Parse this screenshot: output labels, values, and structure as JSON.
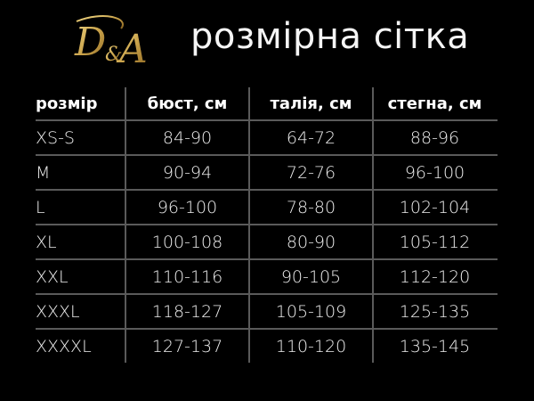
{
  "header": {
    "logo_text": "D&A",
    "title": "розмірна сітка",
    "logo_color": "#c9a24a"
  },
  "table": {
    "columns": [
      "розмір",
      "бюст, см",
      "талія, см",
      "стегна, см"
    ],
    "rows": [
      [
        "XS-S",
        "84-90",
        "64-72",
        "88-96"
      ],
      [
        "M",
        "90-94",
        "72-76",
        "96-100"
      ],
      [
        "L",
        "96-100",
        "78-80",
        "102-104"
      ],
      [
        "XL",
        "100-108",
        "80-90",
        "105-112"
      ],
      [
        "XXL",
        "110-116",
        "90-105",
        "112-120"
      ],
      [
        "XXXL",
        "118-127",
        "105-109",
        "125-135"
      ],
      [
        "XXXXL",
        "127-137",
        "110-120",
        "135-145"
      ]
    ]
  }
}
